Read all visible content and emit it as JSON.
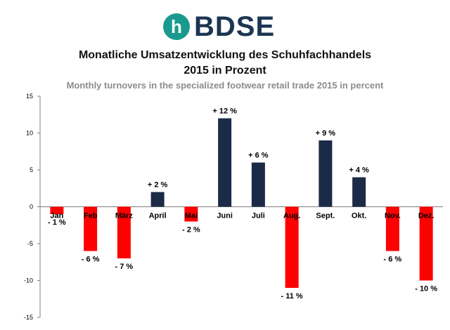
{
  "brand": {
    "logo_text": "BDSE",
    "logo_mark": "h",
    "mark_color": "#1a9a8e",
    "text_color": "#1c3552"
  },
  "chart_data": {
    "type": "bar",
    "title": "Monatliche Umsatzentwicklung des Schuhfachhandels",
    "title_line2": "2015 in Prozent",
    "subtitle": "Monthly turnovers in the specialized footwear retail trade 2015 in percent",
    "categories": [
      "Jan",
      "Feb",
      "März",
      "April",
      "Mai",
      "Juni",
      "Juli",
      "Aug.",
      "Sept.",
      "Okt.",
      "Nov.",
      "Dez."
    ],
    "values": [
      -1,
      -6,
      -7,
      2,
      -2,
      12,
      6,
      -11,
      9,
      4,
      -6,
      -10
    ],
    "data_labels": [
      "- 1 %",
      "- 6 %",
      "- 7 %",
      "+ 2 %",
      "- 2 %",
      "+ 12 %",
      "+ 6 %",
      "- 11 %",
      "+ 9 %",
      "+ 4 %",
      "- 6 %",
      "- 10 %"
    ],
    "ylim": [
      -15,
      15
    ],
    "yticks": [
      15,
      10,
      5,
      0,
      -5,
      -10,
      -15
    ],
    "grid": false,
    "colors": {
      "positive": "#1b2a47",
      "negative": "#ff0000"
    },
    "xlabel": "",
    "ylabel": ""
  }
}
